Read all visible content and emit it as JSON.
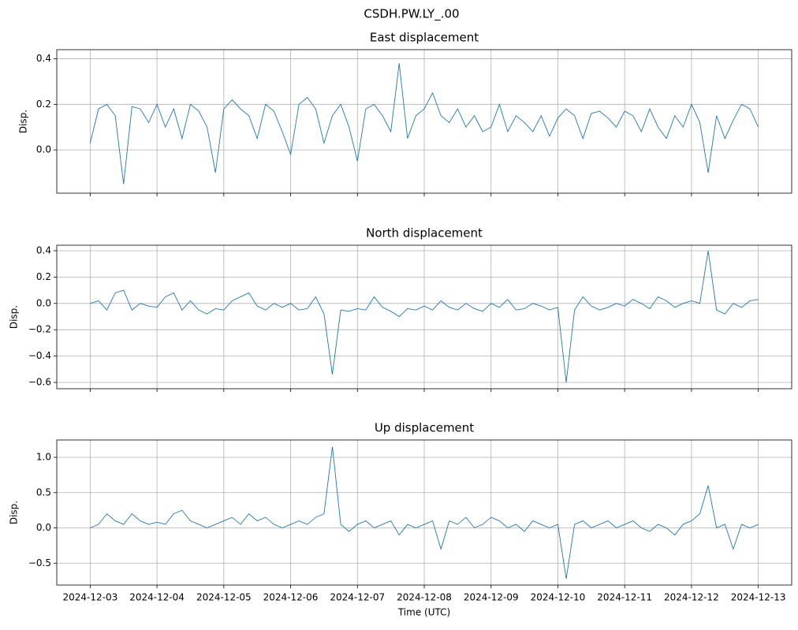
{
  "title": "CSDH.PW.LY_.00",
  "chart_data": [
    {
      "type": "line",
      "title": "East displacement",
      "y_label": "Disp.",
      "color": "#1f77b4",
      "grid": true,
      "show_xtick_labels": false,
      "xlim": [
        "2024-12-02T12:00",
        "2024-12-13T12:00"
      ],
      "xticks": [
        "2024-12-03",
        "2024-12-04",
        "2024-12-05",
        "2024-12-06",
        "2024-12-07",
        "2024-12-08",
        "2024-12-09",
        "2024-12-10",
        "2024-12-11",
        "2024-12-12",
        "2024-12-13"
      ],
      "ylim": [
        -0.19,
        0.44
      ],
      "yticks": [
        {
          "value": 0,
          "label": "0.0"
        },
        0.2,
        0.4
      ],
      "x": [
        "2024-12-03T00:00",
        "2024-12-03T03:00",
        "2024-12-03T06:00",
        "2024-12-03T09:00",
        "2024-12-03T12:00",
        "2024-12-03T15:00",
        "2024-12-03T18:00",
        "2024-12-03T21:00",
        "2024-12-04T00:00",
        "2024-12-04T03:00",
        "2024-12-04T06:00",
        "2024-12-04T09:00",
        "2024-12-04T12:00",
        "2024-12-04T15:00",
        "2024-12-04T18:00",
        "2024-12-04T21:00",
        "2024-12-05T00:00",
        "2024-12-05T03:00",
        "2024-12-05T06:00",
        "2024-12-05T09:00",
        "2024-12-05T12:00",
        "2024-12-05T15:00",
        "2024-12-05T18:00",
        "2024-12-05T21:00",
        "2024-12-06T00:00",
        "2024-12-06T03:00",
        "2024-12-06T06:00",
        "2024-12-06T09:00",
        "2024-12-06T12:00",
        "2024-12-06T15:00",
        "2024-12-06T18:00",
        "2024-12-06T21:00",
        "2024-12-07T00:00",
        "2024-12-07T03:00",
        "2024-12-07T06:00",
        "2024-12-07T09:00",
        "2024-12-07T12:00",
        "2024-12-07T15:00",
        "2024-12-07T18:00",
        "2024-12-07T21:00",
        "2024-12-08T00:00",
        "2024-12-08T03:00",
        "2024-12-08T06:00",
        "2024-12-08T09:00",
        "2024-12-08T12:00",
        "2024-12-08T15:00",
        "2024-12-08T18:00",
        "2024-12-08T21:00",
        "2024-12-09T00:00",
        "2024-12-09T03:00",
        "2024-12-09T06:00",
        "2024-12-09T09:00",
        "2024-12-09T12:00",
        "2024-12-09T15:00",
        "2024-12-09T18:00",
        "2024-12-09T21:00",
        "2024-12-10T00:00",
        "2024-12-10T03:00",
        "2024-12-10T06:00",
        "2024-12-10T09:00",
        "2024-12-10T12:00",
        "2024-12-10T15:00",
        "2024-12-10T18:00",
        "2024-12-10T21:00",
        "2024-12-11T00:00",
        "2024-12-11T03:00",
        "2024-12-11T06:00",
        "2024-12-11T09:00",
        "2024-12-11T12:00",
        "2024-12-11T15:00",
        "2024-12-11T18:00",
        "2024-12-11T21:00",
        "2024-12-12T00:00",
        "2024-12-12T03:00",
        "2024-12-12T06:00",
        "2024-12-12T09:00",
        "2024-12-12T12:00",
        "2024-12-12T15:00",
        "2024-12-12T18:00",
        "2024-12-12T21:00",
        "2024-12-13T00:00"
      ],
      "values": [
        0.03,
        0.18,
        0.2,
        0.15,
        -0.15,
        0.19,
        0.18,
        0.12,
        0.2,
        0.1,
        0.18,
        0.05,
        0.2,
        0.17,
        0.1,
        -0.1,
        0.18,
        0.22,
        0.18,
        0.15,
        0.05,
        0.2,
        0.17,
        0.08,
        -0.02,
        0.2,
        0.23,
        0.18,
        0.03,
        0.15,
        0.2,
        0.1,
        -0.05,
        0.18,
        0.2,
        0.15,
        0.08,
        0.38,
        0.05,
        0.15,
        0.18,
        0.25,
        0.15,
        0.12,
        0.18,
        0.1,
        0.15,
        0.08,
        0.1,
        0.2,
        0.08,
        0.15,
        0.12,
        0.08,
        0.15,
        0.06,
        0.14,
        0.18,
        0.15,
        0.05,
        0.16,
        0.17,
        0.14,
        0.1,
        0.17,
        0.15,
        0.08,
        0.18,
        0.1,
        0.05,
        0.15,
        0.1,
        0.2,
        0.12,
        -0.1,
        0.15,
        0.05,
        0.13,
        0.2,
        0.18,
        0.1
      ]
    },
    {
      "type": "line",
      "title": "North displacement",
      "y_label": "Disp.",
      "color": "#1f77b4",
      "grid": true,
      "show_xtick_labels": false,
      "xlim": [
        "2024-12-02T12:00",
        "2024-12-13T12:00"
      ],
      "xticks": [
        "2024-12-03",
        "2024-12-04",
        "2024-12-05",
        "2024-12-06",
        "2024-12-07",
        "2024-12-08",
        "2024-12-09",
        "2024-12-10",
        "2024-12-11",
        "2024-12-12",
        "2024-12-13"
      ],
      "ylim": [
        -0.648,
        0.442
      ],
      "yticks": [
        {
          "value": -0.6,
          "label": "−0.6"
        },
        {
          "value": -0.4,
          "label": "−0.4"
        },
        {
          "value": -0.2,
          "label": "−0.2"
        },
        {
          "value": 0,
          "label": "0.0"
        },
        0.2,
        0.4
      ],
      "x": [
        "2024-12-03T00:00",
        "2024-12-03T03:00",
        "2024-12-03T06:00",
        "2024-12-03T09:00",
        "2024-12-03T12:00",
        "2024-12-03T15:00",
        "2024-12-03T18:00",
        "2024-12-03T21:00",
        "2024-12-04T00:00",
        "2024-12-04T03:00",
        "2024-12-04T06:00",
        "2024-12-04T09:00",
        "2024-12-04T12:00",
        "2024-12-04T15:00",
        "2024-12-04T18:00",
        "2024-12-04T21:00",
        "2024-12-05T00:00",
        "2024-12-05T03:00",
        "2024-12-05T06:00",
        "2024-12-05T09:00",
        "2024-12-05T12:00",
        "2024-12-05T15:00",
        "2024-12-05T18:00",
        "2024-12-05T21:00",
        "2024-12-06T00:00",
        "2024-12-06T03:00",
        "2024-12-06T06:00",
        "2024-12-06T09:00",
        "2024-12-06T12:00",
        "2024-12-06T15:00",
        "2024-12-06T18:00",
        "2024-12-06T21:00",
        "2024-12-07T00:00",
        "2024-12-07T03:00",
        "2024-12-07T06:00",
        "2024-12-07T09:00",
        "2024-12-07T12:00",
        "2024-12-07T15:00",
        "2024-12-07T18:00",
        "2024-12-07T21:00",
        "2024-12-08T00:00",
        "2024-12-08T03:00",
        "2024-12-08T06:00",
        "2024-12-08T09:00",
        "2024-12-08T12:00",
        "2024-12-08T15:00",
        "2024-12-08T18:00",
        "2024-12-08T21:00",
        "2024-12-09T00:00",
        "2024-12-09T03:00",
        "2024-12-09T06:00",
        "2024-12-09T09:00",
        "2024-12-09T12:00",
        "2024-12-09T15:00",
        "2024-12-09T18:00",
        "2024-12-09T21:00",
        "2024-12-10T00:00",
        "2024-12-10T03:00",
        "2024-12-10T06:00",
        "2024-12-10T09:00",
        "2024-12-10T12:00",
        "2024-12-10T15:00",
        "2024-12-10T18:00",
        "2024-12-10T21:00",
        "2024-12-11T00:00",
        "2024-12-11T03:00",
        "2024-12-11T06:00",
        "2024-12-11T09:00",
        "2024-12-11T12:00",
        "2024-12-11T15:00",
        "2024-12-11T18:00",
        "2024-12-11T21:00",
        "2024-12-12T00:00",
        "2024-12-12T03:00",
        "2024-12-12T06:00",
        "2024-12-12T09:00",
        "2024-12-12T12:00",
        "2024-12-12T15:00",
        "2024-12-12T18:00",
        "2024-12-12T21:00",
        "2024-12-13T00:00"
      ],
      "values": [
        0.0,
        0.02,
        -0.05,
        0.08,
        0.1,
        -0.05,
        0.0,
        -0.02,
        -0.03,
        0.05,
        0.08,
        -0.05,
        0.02,
        -0.05,
        -0.08,
        -0.04,
        -0.05,
        0.02,
        0.05,
        0.08,
        -0.02,
        -0.05,
        0.0,
        -0.03,
        0.0,
        -0.05,
        -0.04,
        0.05,
        -0.08,
        -0.54,
        -0.05,
        -0.06,
        -0.04,
        -0.05,
        0.05,
        -0.03,
        -0.06,
        -0.1,
        -0.04,
        -0.05,
        -0.02,
        -0.05,
        0.02,
        -0.03,
        -0.05,
        0.0,
        -0.04,
        -0.06,
        0.0,
        -0.03,
        0.03,
        -0.05,
        -0.04,
        0.0,
        -0.02,
        -0.05,
        -0.03,
        -0.6,
        -0.05,
        0.05,
        -0.02,
        -0.05,
        -0.03,
        0.0,
        -0.02,
        0.03,
        0.0,
        -0.04,
        0.05,
        0.02,
        -0.03,
        0.0,
        0.02,
        0.0,
        0.4,
        -0.05,
        -0.08,
        0.0,
        -0.03,
        0.02,
        0.03
      ]
    },
    {
      "type": "line",
      "title": "Up displacement",
      "y_label": "Disp.",
      "x_label": "Time (UTC)",
      "color": "#1f77b4",
      "grid": true,
      "show_xtick_labels": true,
      "xlim": [
        "2024-12-02T12:00",
        "2024-12-13T12:00"
      ],
      "xticks": [
        "2024-12-03",
        "2024-12-04",
        "2024-12-05",
        "2024-12-06",
        "2024-12-07",
        "2024-12-08",
        "2024-12-09",
        "2024-12-10",
        "2024-12-11",
        "2024-12-12",
        "2024-12-13"
      ],
      "ylim": [
        -0.81,
        1.246
      ],
      "yticks": [
        {
          "value": -0.5,
          "label": "−0.5"
        },
        {
          "value": 0,
          "label": "0.0"
        },
        0.5,
        {
          "value": 1,
          "label": "1.0"
        }
      ],
      "x": [
        "2024-12-03T00:00",
        "2024-12-03T03:00",
        "2024-12-03T06:00",
        "2024-12-03T09:00",
        "2024-12-03T12:00",
        "2024-12-03T15:00",
        "2024-12-03T18:00",
        "2024-12-03T21:00",
        "2024-12-04T00:00",
        "2024-12-04T03:00",
        "2024-12-04T06:00",
        "2024-12-04T09:00",
        "2024-12-04T12:00",
        "2024-12-04T15:00",
        "2024-12-04T18:00",
        "2024-12-04T21:00",
        "2024-12-05T00:00",
        "2024-12-05T03:00",
        "2024-12-05T06:00",
        "2024-12-05T09:00",
        "2024-12-05T12:00",
        "2024-12-05T15:00",
        "2024-12-05T18:00",
        "2024-12-05T21:00",
        "2024-12-06T00:00",
        "2024-12-06T03:00",
        "2024-12-06T06:00",
        "2024-12-06T09:00",
        "2024-12-06T12:00",
        "2024-12-06T15:00",
        "2024-12-06T18:00",
        "2024-12-06T21:00",
        "2024-12-07T00:00",
        "2024-12-07T03:00",
        "2024-12-07T06:00",
        "2024-12-07T09:00",
        "2024-12-07T12:00",
        "2024-12-07T15:00",
        "2024-12-07T18:00",
        "2024-12-07T21:00",
        "2024-12-08T00:00",
        "2024-12-08T03:00",
        "2024-12-08T06:00",
        "2024-12-08T09:00",
        "2024-12-08T12:00",
        "2024-12-08T15:00",
        "2024-12-08T18:00",
        "2024-12-08T21:00",
        "2024-12-09T00:00",
        "2024-12-09T03:00",
        "2024-12-09T06:00",
        "2024-12-09T09:00",
        "2024-12-09T12:00",
        "2024-12-09T15:00",
        "2024-12-09T18:00",
        "2024-12-09T21:00",
        "2024-12-10T00:00",
        "2024-12-10T03:00",
        "2024-12-10T06:00",
        "2024-12-10T09:00",
        "2024-12-10T12:00",
        "2024-12-10T15:00",
        "2024-12-10T18:00",
        "2024-12-10T21:00",
        "2024-12-11T00:00",
        "2024-12-11T03:00",
        "2024-12-11T06:00",
        "2024-12-11T09:00",
        "2024-12-11T12:00",
        "2024-12-11T15:00",
        "2024-12-11T18:00",
        "2024-12-11T21:00",
        "2024-12-12T00:00",
        "2024-12-12T03:00",
        "2024-12-12T06:00",
        "2024-12-12T09:00",
        "2024-12-12T12:00",
        "2024-12-12T15:00",
        "2024-12-12T18:00",
        "2024-12-12T21:00",
        "2024-12-13T00:00"
      ],
      "values": [
        0.0,
        0.05,
        0.2,
        0.1,
        0.05,
        0.2,
        0.1,
        0.05,
        0.08,
        0.05,
        0.2,
        0.25,
        0.1,
        0.05,
        0.0,
        0.05,
        0.1,
        0.15,
        0.05,
        0.2,
        0.1,
        0.15,
        0.05,
        0.0,
        0.05,
        0.1,
        0.05,
        0.15,
        0.2,
        1.15,
        0.05,
        -0.05,
        0.05,
        0.1,
        0.0,
        0.05,
        0.1,
        -0.1,
        0.05,
        0.0,
        0.05,
        0.1,
        -0.3,
        0.1,
        0.05,
        0.15,
        0.0,
        0.05,
        0.15,
        0.1,
        0.0,
        0.05,
        -0.05,
        0.1,
        0.05,
        0.0,
        0.05,
        -0.72,
        0.05,
        0.1,
        0.0,
        0.05,
        0.1,
        0.0,
        0.05,
        0.1,
        0.0,
        -0.05,
        0.05,
        0.0,
        -0.1,
        0.05,
        0.1,
        0.2,
        0.6,
        0.0,
        0.05,
        -0.3,
        0.05,
        0.0,
        0.05
      ]
    }
  ]
}
